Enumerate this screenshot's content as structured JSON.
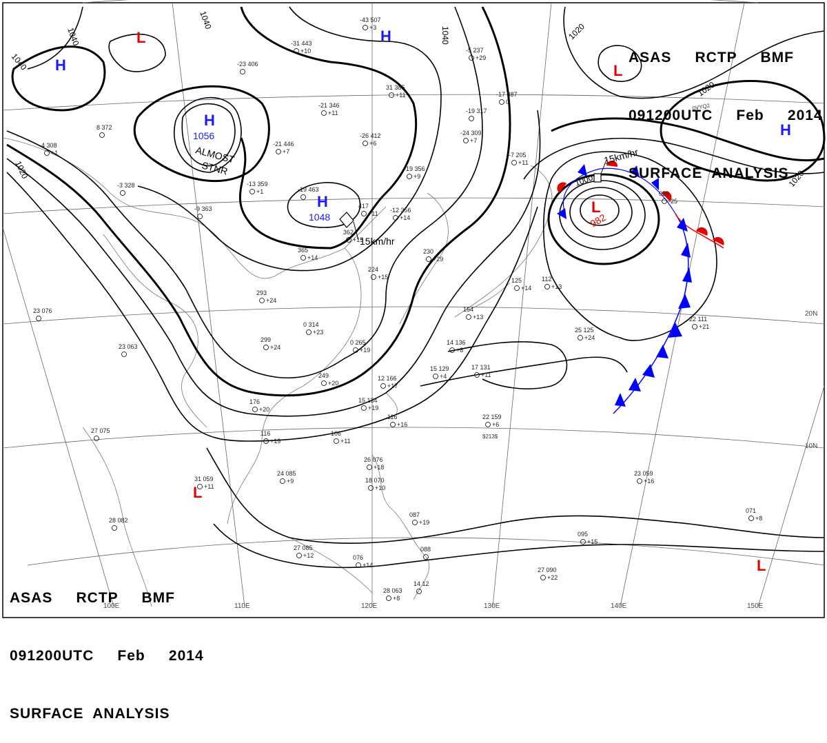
{
  "header": {
    "line1": "ASAS     RCTP     BMF",
    "line2": "091200UTC     Feb     2014",
    "line3": "SURFACE  ANALYSIS"
  },
  "colors": {
    "high": "#1a1aff",
    "low": "#e60000",
    "cold_front": "#0000ff",
    "warm_front": "#e60000"
  },
  "pressure_centers": {
    "high_nw_label": "H",
    "high_center_label": "H",
    "high_center_value": "1056",
    "high_center_note1": "ALMOST",
    "high_center_note2": "STNR",
    "high_mid_label": "H",
    "high_mid_value": "1048",
    "high_north_label": "H",
    "high_east_label": "H",
    "low_north_label": "L",
    "low_ne_label": "L",
    "low_main_label": "L",
    "low_main_value": "982",
    "low_sw_label": "L",
    "low_se_label": "L"
  },
  "isobar_labels": {
    "i1040a": "1040",
    "i1040b": "1040",
    "i1040c": "1040",
    "i1040d": "1040",
    "i1020a": "1020",
    "i1020b": "1020",
    "i1020c": "1020",
    "i1020d": "1020",
    "i1000": "1000"
  },
  "motion": {
    "m1": "15km/hr",
    "m2": "15km/hr"
  },
  "grid_labels": {
    "lon110": "110E",
    "lon120": "120E",
    "lon130": "130E",
    "lon140": "140E",
    "lon150": "150E",
    "lon100": "100E",
    "lat20": "20N",
    "lat10": "10N"
  },
  "stations": [
    {
      "id": "s1",
      "t": "-43 507",
      "v": "+3"
    },
    {
      "id": "s2",
      "t": "-31 443",
      "v": "+10"
    },
    {
      "id": "s3",
      "t": "-23 406",
      "v": ""
    },
    {
      "id": "s4",
      "t": "-21 346",
      "v": "+11"
    },
    {
      "id": "s5",
      "t": "31 385",
      "v": "+11"
    },
    {
      "id": "s6",
      "t": "-21 446",
      "v": "+7"
    },
    {
      "id": "s7",
      "t": "-26 412",
      "v": "+6"
    },
    {
      "id": "s8",
      "t": "-19 356",
      "v": "+9"
    },
    {
      "id": "s9",
      "t": "-13 359",
      "v": "+1"
    },
    {
      "id": "s10",
      "t": "-19 463",
      "v": ""
    },
    {
      "id": "s11",
      "t": "-12 356",
      "v": "+14"
    },
    {
      "id": "s12",
      "t": "417",
      "v": "+11"
    },
    {
      "id": "s13",
      "t": "362",
      "v": "+15"
    },
    {
      "id": "s14",
      "t": "365",
      "v": "+14"
    },
    {
      "id": "s15",
      "t": "-3 328",
      "v": ""
    },
    {
      "id": "s16",
      "t": "8 372",
      "v": ""
    },
    {
      "id": "s17",
      "t": "4 308",
      "v": "+1"
    },
    {
      "id": "s18",
      "t": "-9 363",
      "v": ""
    },
    {
      "id": "s19",
      "t": "293",
      "v": "+24"
    },
    {
      "id": "s20",
      "t": "0 314",
      "v": "+23"
    },
    {
      "id": "s21",
      "t": "299",
      "v": "+24"
    },
    {
      "id": "s22",
      "t": "0 265",
      "v": "+19"
    },
    {
      "id": "s23",
      "t": "249",
      "v": "+20"
    },
    {
      "id": "s24",
      "t": "176",
      "v": "+20"
    },
    {
      "id": "s25",
      "t": "116",
      "v": "+19"
    },
    {
      "id": "s26",
      "t": "106",
      "v": "+11"
    },
    {
      "id": "s27",
      "t": "-24 309",
      "v": "+7"
    },
    {
      "id": "s28",
      "t": "-19 317",
      "v": ""
    },
    {
      "id": "s29",
      "t": "-17 387",
      "v": "0"
    },
    {
      "id": "s30",
      "t": "-5 237",
      "v": "+29"
    },
    {
      "id": "s31",
      "t": "-7 205",
      "v": "+11"
    },
    {
      "id": "s32",
      "t": "230",
      "v": "+29"
    },
    {
      "id": "s33",
      "t": "224",
      "v": "+15"
    },
    {
      "id": "s34",
      "t": "164",
      "v": "+13"
    },
    {
      "id": "s35",
      "t": "125",
      "v": "+14"
    },
    {
      "id": "s36",
      "t": "112",
      "v": "+13"
    },
    {
      "id": "s37",
      "t": "059",
      "v": "-25"
    },
    {
      "id": "s38",
      "t": "25 125",
      "v": "+24"
    },
    {
      "id": "s39",
      "t": "22 111",
      "v": "+21"
    },
    {
      "id": "s40",
      "t": "14 136",
      "v": "+8"
    },
    {
      "id": "s41",
      "t": "15 129",
      "v": "+4"
    },
    {
      "id": "s42",
      "t": "17 131",
      "v": "+11"
    },
    {
      "id": "s43",
      "t": "12 166",
      "v": "+17"
    },
    {
      "id": "s44",
      "t": "15 134",
      "v": "+19"
    },
    {
      "id": "s45",
      "t": "116",
      "v": "+16"
    },
    {
      "id": "s46",
      "t": "22 159",
      "v": "+6"
    },
    {
      "id": "s47",
      "t": "23 063",
      "v": ""
    },
    {
      "id": "s48",
      "t": "23 076",
      "v": ""
    },
    {
      "id": "s49",
      "t": "27 075",
      "v": ""
    },
    {
      "id": "s50",
      "t": "31 059",
      "v": "+11"
    },
    {
      "id": "s51",
      "t": "24 085",
      "v": "+9"
    },
    {
      "id": "s52",
      "t": "28 082",
      "v": ""
    },
    {
      "id": "s53",
      "t": "26 076",
      "v": "+18"
    },
    {
      "id": "s54",
      "t": "18 070",
      "v": "+10"
    },
    {
      "id": "s55",
      "t": "088",
      "v": ""
    },
    {
      "id": "s56",
      "t": "087",
      "v": "+19"
    },
    {
      "id": "s57",
      "t": "27 085",
      "v": "+12"
    },
    {
      "id": "s58",
      "t": "076",
      "v": "+14"
    },
    {
      "id": "s59",
      "t": "28 063",
      "v": "+8"
    },
    {
      "id": "s60",
      "t": "23 059",
      "v": "+16"
    },
    {
      "id": "s61",
      "t": "095",
      "v": "+15"
    },
    {
      "id": "s62",
      "t": "27 090",
      "v": "+22"
    },
    {
      "id": "s63",
      "t": "071",
      "v": "+8"
    },
    {
      "id": "s64",
      "t": "14 12",
      "v": ""
    }
  ],
  "misc": {
    "m_a": "0VYQ2",
    "m_b": "$213$"
  }
}
